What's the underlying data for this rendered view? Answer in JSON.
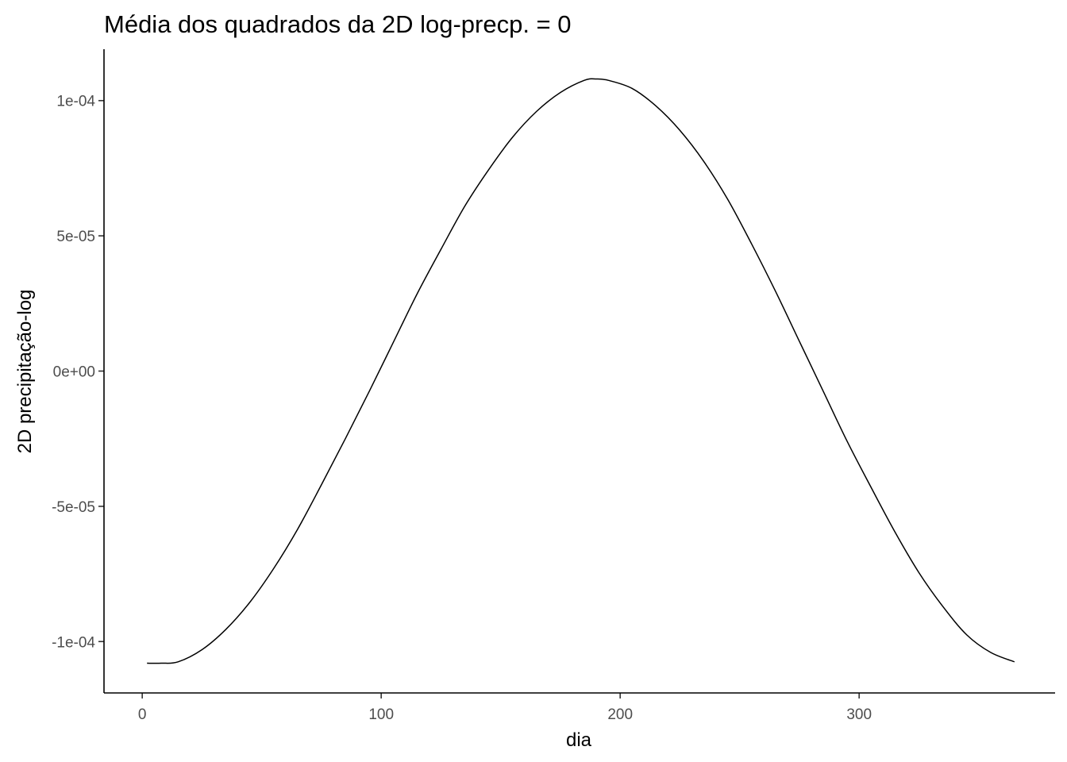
{
  "chart_data": {
    "type": "line",
    "title": "Média dos quadrados da 2D log-precp. = 0",
    "xlabel": "dia",
    "ylabel": "2D precipitação-log",
    "xlim": [
      -16,
      382
    ],
    "ylim": [
      -0.000119,
      0.000119
    ],
    "x_ticks": [
      0,
      100,
      200,
      300
    ],
    "x_tick_labels": [
      "0",
      "100",
      "200",
      "300"
    ],
    "y_ticks": [
      -0.0001,
      -5e-05,
      0,
      5e-05,
      0.0001
    ],
    "y_tick_labels": [
      "-1e-04",
      "-5e-05",
      "0e+00",
      "5e-05",
      "1e-04"
    ],
    "grid": false,
    "legend": "none",
    "colors": {
      "line": "#000000",
      "axis": "#000000",
      "tick_text": "#4d4d4d"
    },
    "series": [
      {
        "x": [
          2,
          8,
          15,
          25,
          35,
          45,
          55,
          65,
          75,
          85,
          95,
          105,
          115,
          125,
          135,
          145,
          155,
          165,
          175,
          185,
          190,
          195,
          205,
          215,
          225,
          235,
          245,
          255,
          265,
          275,
          285,
          295,
          305,
          315,
          325,
          335,
          345,
          355,
          365
        ],
        "y": [
          -0.000108,
          -0.000108,
          -0.0001075,
          -0.000103,
          -9.55e-05,
          -8.55e-05,
          -7.3e-05,
          -5.85e-05,
          -4.2e-05,
          -2.5e-05,
          -7.5e-06,
          1.05e-05,
          2.85e-05,
          4.5e-05,
          6.1e-05,
          7.45e-05,
          8.65e-05,
          9.6e-05,
          0.000103,
          0.0001075,
          0.000108,
          0.0001075,
          0.0001045,
          9.8e-05,
          8.9e-05,
          7.75e-05,
          6.35e-05,
          4.7e-05,
          2.95e-05,
          1.1e-05,
          -7.5e-06,
          -2.6e-05,
          -4.3e-05,
          -5.95e-05,
          -7.45e-05,
          -8.7e-05,
          -9.75e-05,
          -0.000104,
          -0.0001075
        ]
      }
    ]
  }
}
